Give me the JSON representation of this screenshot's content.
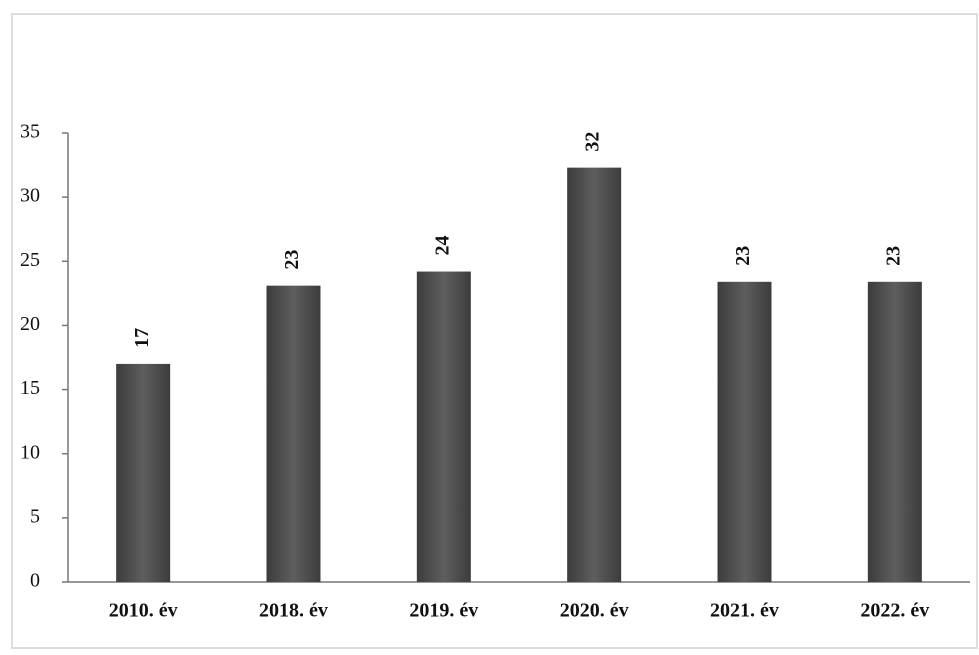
{
  "chart_data": {
    "type": "bar",
    "categories": [
      "2010. év",
      "2018. év",
      "2019. év",
      "2020. év",
      "2021. év",
      "2022. év"
    ],
    "values": [
      17,
      23.1,
      24.2,
      32.3,
      23.4,
      23.4
    ],
    "value_labels": [
      "17",
      "23",
      "24",
      "32",
      "23",
      "23"
    ],
    "color": "#505050",
    "ylim": [
      0,
      35
    ],
    "yticks": [
      0,
      5,
      10,
      15,
      20,
      25,
      30,
      35
    ],
    "grid": false
  }
}
